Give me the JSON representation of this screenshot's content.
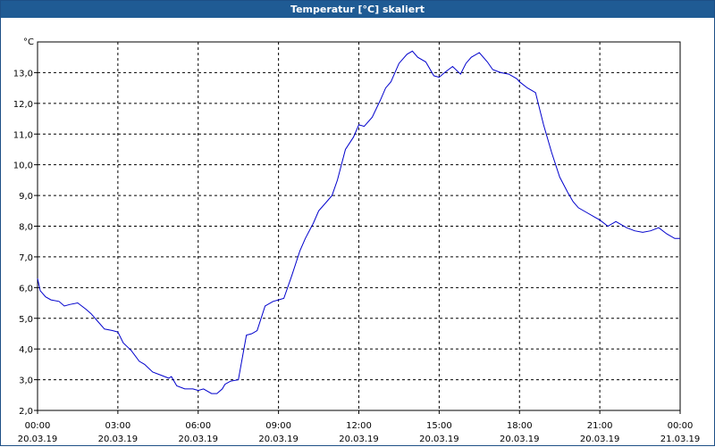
{
  "window": {
    "title": "Temperatur [°C] skaliert"
  },
  "colors": {
    "title_bar": "#1f5b94",
    "series_line": "#0000cc",
    "grid": "#000000"
  },
  "chart_data": {
    "type": "line",
    "title": "Temperatur [°C] skaliert",
    "ylabel": "°C",
    "xlabel": "",
    "ylim": [
      2.0,
      14.0
    ],
    "xlim_hours": [
      0,
      24
    ],
    "grid": true,
    "grid_style": "dashed",
    "x_ticks": [
      {
        "hour": 0,
        "time": "00:00",
        "date": "20.03.19"
      },
      {
        "hour": 3,
        "time": "03:00",
        "date": "20.03.19"
      },
      {
        "hour": 6,
        "time": "06:00",
        "date": "20.03.19"
      },
      {
        "hour": 9,
        "time": "09:00",
        "date": "20.03.19"
      },
      {
        "hour": 12,
        "time": "12:00",
        "date": "20.03.19"
      },
      {
        "hour": 15,
        "time": "15:00",
        "date": "20.03.19"
      },
      {
        "hour": 18,
        "time": "18:00",
        "date": "20.03.19"
      },
      {
        "hour": 21,
        "time": "21:00",
        "date": "20.03.19"
      },
      {
        "hour": 24,
        "time": "00:00",
        "date": "21.03.19"
      }
    ],
    "y_ticks": [
      "2,0",
      "3,0",
      "4,0",
      "5,0",
      "6,0",
      "7,0",
      "8,0",
      "9,0",
      "10,0",
      "11,0",
      "12,0",
      "13,0"
    ],
    "series": [
      {
        "x_hours": [
          0.0,
          0.1,
          0.3,
          0.5,
          0.8,
          1.0,
          1.2,
          1.5,
          1.8,
          2.0,
          2.2,
          2.5,
          2.8,
          3.0,
          3.2,
          3.5,
          3.8,
          4.0,
          4.3,
          4.6,
          4.9,
          5.0,
          5.2,
          5.5,
          5.8,
          6.0,
          6.2,
          6.5,
          6.7,
          6.9,
          7.0,
          7.2,
          7.5,
          7.8,
          8.0,
          8.2,
          8.5,
          8.8,
          9.0,
          9.2,
          9.5,
          9.8,
          10.0,
          10.3,
          10.5,
          10.8,
          11.0,
          11.2,
          11.5,
          11.8,
          12.0,
          12.2,
          12.5,
          12.8,
          13.0,
          13.2,
          13.5,
          13.8,
          14.0,
          14.2,
          14.5,
          14.8,
          15.0,
          15.2,
          15.5,
          15.8,
          16.0,
          16.2,
          16.5,
          16.8,
          17.0,
          17.3,
          17.6,
          17.9,
          18.0,
          18.3,
          18.6,
          18.9,
          19.2,
          19.5,
          19.8,
          20.0,
          20.2,
          20.5,
          20.8,
          21.0,
          21.3,
          21.6,
          22.0,
          22.3,
          22.6,
          22.9,
          23.2,
          23.5,
          23.8,
          24.0
        ],
        "y": [
          6.3,
          5.9,
          5.7,
          5.6,
          5.55,
          5.4,
          5.45,
          5.5,
          5.3,
          5.15,
          4.95,
          4.65,
          4.6,
          4.55,
          4.2,
          3.95,
          3.6,
          3.5,
          3.25,
          3.15,
          3.05,
          3.1,
          2.8,
          2.7,
          2.7,
          2.65,
          2.7,
          2.55,
          2.55,
          2.7,
          2.85,
          2.95,
          3.0,
          4.45,
          4.5,
          4.6,
          5.4,
          5.55,
          5.6,
          5.65,
          6.4,
          7.2,
          7.6,
          8.1,
          8.5,
          8.8,
          9.0,
          9.5,
          10.5,
          10.9,
          11.3,
          11.25,
          11.55,
          12.1,
          12.5,
          12.7,
          13.3,
          13.6,
          13.7,
          13.5,
          13.35,
          12.9,
          12.85,
          13.0,
          13.2,
          12.95,
          13.3,
          13.5,
          13.65,
          13.35,
          13.1,
          13.0,
          12.95,
          12.8,
          12.7,
          12.5,
          12.35,
          11.3,
          10.4,
          9.6,
          9.1,
          8.8,
          8.6,
          8.45,
          8.3,
          8.2,
          8.0,
          8.15,
          7.95,
          7.85,
          7.8,
          7.85,
          7.95,
          7.75,
          7.6,
          7.6
        ]
      }
    ]
  }
}
